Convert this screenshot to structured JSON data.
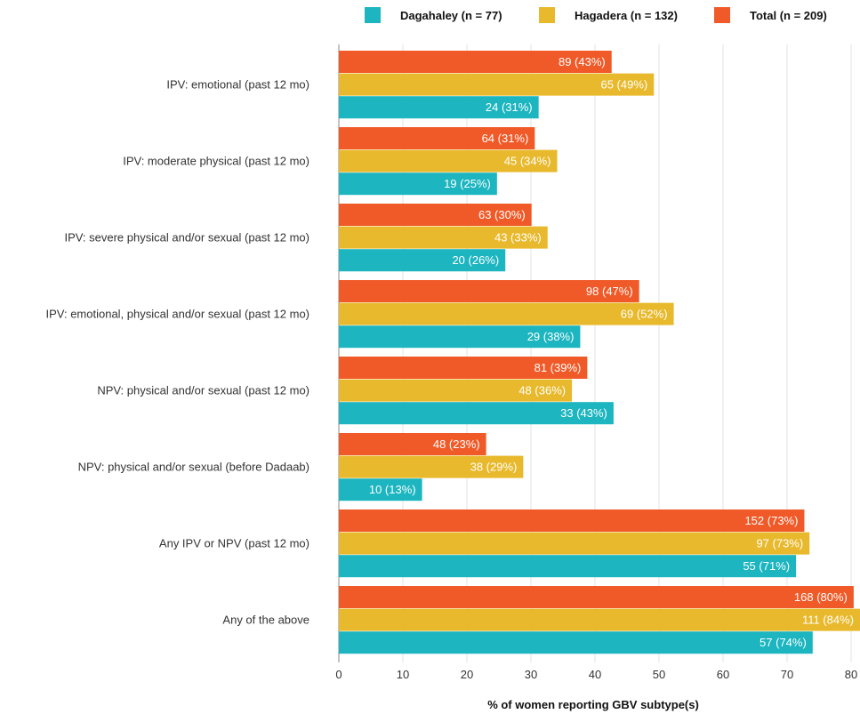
{
  "chart_data": {
    "type": "bar",
    "orientation": "horizontal",
    "title": "",
    "xlabel": "% of women reporting GBV subtype(s)",
    "ylabel": "",
    "xlim": [
      0,
      82
    ],
    "xticks": [
      0,
      10,
      20,
      30,
      40,
      50,
      60,
      70,
      80
    ],
    "grid": true,
    "legend_position": "top-right",
    "categories": [
      "IPV: emotional (past 12 mo)",
      "IPV: moderate physical (past 12 mo)",
      "IPV: severe physical and/or sexual (past 12 mo)",
      "IPV: emotional, physical and/or sexual (past 12 mo)",
      "NPV: physical and/or sexual (past 12 mo)",
      "NPV: physical and/or sexual (before Dadaab)",
      "Any IPV or NPV (past 12 mo)",
      "Any of the above"
    ],
    "series": [
      {
        "name": "Total (n = 209)",
        "color": "#f05a28",
        "values": [
          42.6,
          30.6,
          30.1,
          46.9,
          38.8,
          23.0,
          72.7,
          80.4
        ],
        "labels": [
          "89 (43%)",
          "64 (31%)",
          "63 (30%)",
          "98 (47%)",
          "81 (39%)",
          "48 (23%)",
          "152 (73%)",
          "168 (80%)"
        ]
      },
      {
        "name": "Hagadera (n = 132)",
        "color": "#e8b92c",
        "values": [
          49.2,
          34.1,
          32.6,
          52.3,
          36.4,
          28.8,
          73.5,
          84.1
        ],
        "labels": [
          "65 (49%)",
          "45 (34%)",
          "43 (33%)",
          "69 (52%)",
          "48 (36%)",
          "38 (29%)",
          "97 (73%)",
          "111 (84%)"
        ]
      },
      {
        "name": "Dagahaley (n = 77)",
        "color": "#1cb5c0",
        "values": [
          31.2,
          24.7,
          26.0,
          37.7,
          42.9,
          13.0,
          71.4,
          74.0
        ],
        "labels": [
          "24 (31%)",
          "19 (25%)",
          "20 (26%)",
          "29 (38%)",
          "33 (43%)",
          "10 (13%)",
          "55 (71%)",
          "57 (74%)"
        ]
      }
    ],
    "legend_order": [
      "Dagahaley (n = 77)",
      "Hagadera (n = 132)",
      "Total (n = 209)"
    ]
  }
}
